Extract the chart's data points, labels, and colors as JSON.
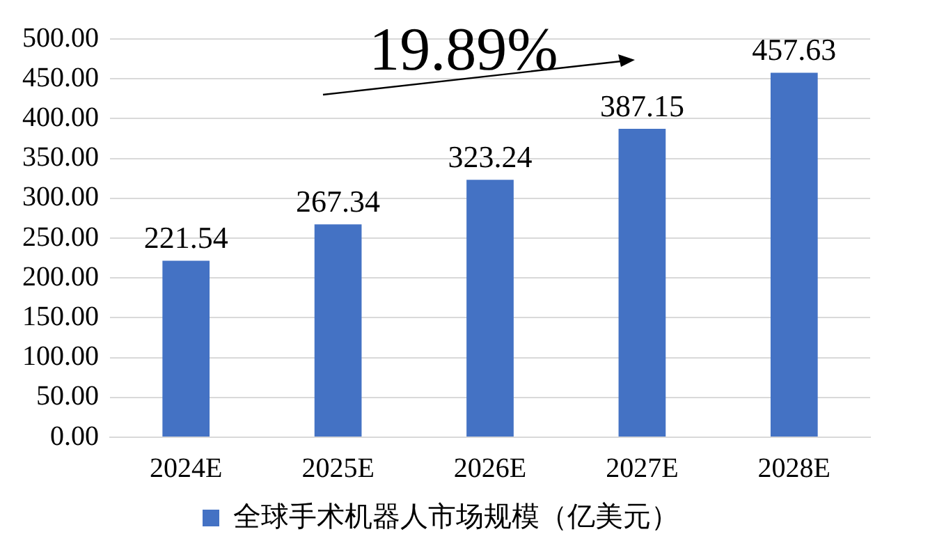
{
  "chart_data": {
    "type": "bar",
    "categories": [
      "2024E",
      "2025E",
      "2026E",
      "2027E",
      "2028E"
    ],
    "series": [
      {
        "name": "全球手术机器人市场规模（亿美元）",
        "color": "#4472c4",
        "values": [
          221.54,
          267.34,
          323.24,
          387.15,
          457.63
        ]
      }
    ],
    "ylim": [
      0,
      500
    ],
    "yticks": [
      {
        "value": 0,
        "label": "0.00"
      },
      {
        "value": 50,
        "label": "50.00"
      },
      {
        "value": 100,
        "label": "100.00"
      },
      {
        "value": 150,
        "label": "150.00"
      },
      {
        "value": 200,
        "label": "200.00"
      },
      {
        "value": 250,
        "label": "250.00"
      },
      {
        "value": 300,
        "label": "300.00"
      },
      {
        "value": 350,
        "label": "350.00"
      },
      {
        "value": 400,
        "label": "400.00"
      },
      {
        "value": 450,
        "label": "450.00"
      },
      {
        "value": 500,
        "label": "500.00"
      }
    ],
    "grid": "y",
    "legend": "bottom",
    "data_labels": true,
    "annotations": [
      "19.89%"
    ]
  }
}
